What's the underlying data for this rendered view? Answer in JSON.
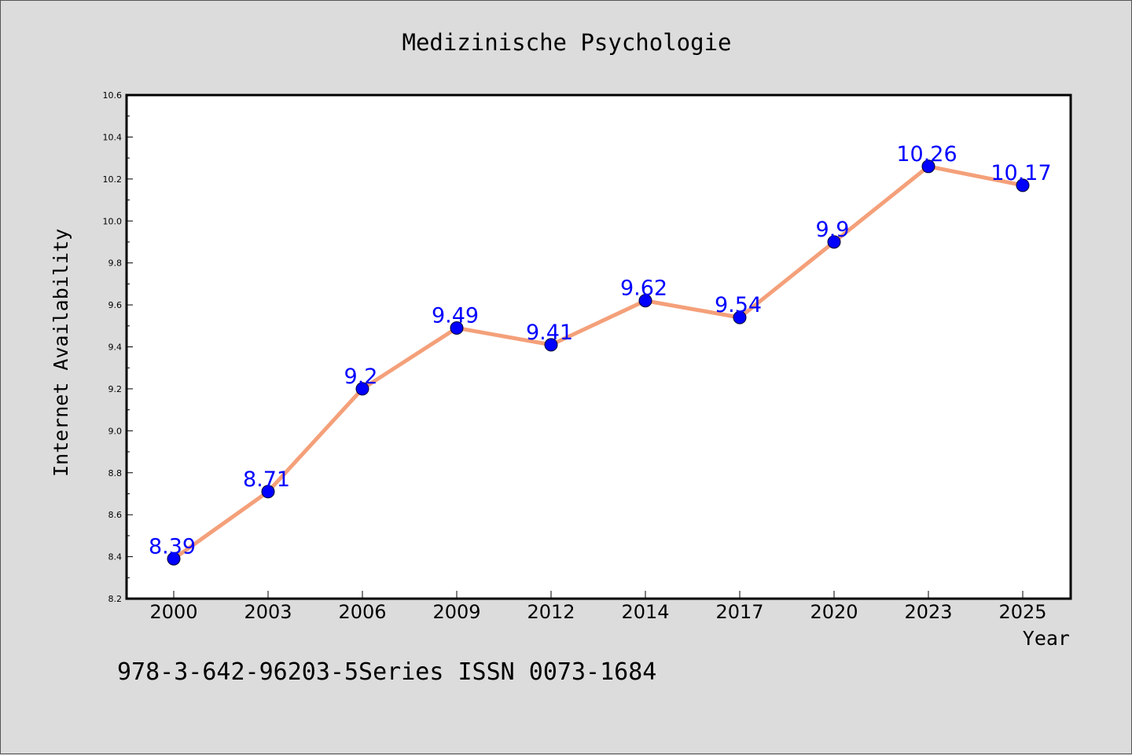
{
  "chart_data": {
    "type": "line",
    "title": "Medizinische Psychologie",
    "xlabel": "Year",
    "ylabel": "Internet Availability",
    "categories": [
      "2000",
      "2003",
      "2006",
      "2009",
      "2012",
      "2014",
      "2017",
      "2020",
      "2023",
      "2025"
    ],
    "series": [
      {
        "values": [
          8.39,
          8.71,
          9.2,
          9.49,
          9.41,
          9.62,
          9.54,
          9.9,
          10.26,
          10.17
        ],
        "line_color": "#f4a07a",
        "marker_color": "#0000ff"
      }
    ],
    "data_labels": [
      "8.39",
      "8.71",
      "9.2",
      "9.49",
      "9.41",
      "9.62",
      "9.54",
      "9.9",
      "10.26",
      "10.17"
    ],
    "ylim": [
      8.2,
      10.6
    ],
    "yticks": [
      "8.2",
      "8.4",
      "8.6",
      "8.8",
      "9.0",
      "9.2",
      "9.4",
      "9.6",
      "9.8",
      "10.0",
      "10.2",
      "10.4",
      "10.6"
    ],
    "grid": false,
    "data_label_color": "#0000ff"
  },
  "footer": "978-3-642-96203-5Series ISSN 0073-1684"
}
